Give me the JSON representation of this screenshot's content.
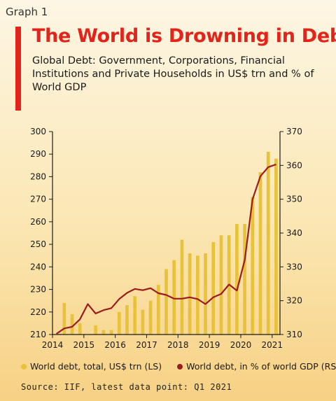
{
  "header": {
    "graph_label": "Graph 1",
    "title": "The World is Drowning in Debt",
    "subtitle": "Global Debt: Government, Corporations, Financial Institutions and Private Households in US$ trn and % of World GDP"
  },
  "legend": {
    "bars_label": "World debt, total, US$ trn (LS)",
    "line_label": "World debt, in % of world GDP (RS)"
  },
  "source": "Source: IIF, latest data point: Q1 2021",
  "colors": {
    "title": "#e3241b",
    "bars": "#e8c23a",
    "line": "#9b1b1f",
    "axis": "#1a1a1a"
  },
  "chart_data": {
    "type": "bar+line",
    "x_ticks": [
      "2014",
      "2015",
      "2016",
      "2017",
      "2018",
      "2019",
      "2020",
      "2021"
    ],
    "y_left_ticks": [
      210,
      220,
      230,
      240,
      250,
      260,
      270,
      280,
      290,
      300
    ],
    "y_right_ticks": [
      310,
      320,
      330,
      340,
      350,
      360,
      370
    ],
    "ylim_left": [
      210,
      300
    ],
    "ylim_right": [
      310,
      370
    ],
    "x": [
      "2014 Q1",
      "2014 Q2",
      "2014 Q3",
      "2014 Q4",
      "2015 Q1",
      "2015 Q2",
      "2015 Q3",
      "2015 Q4",
      "2016 Q1",
      "2016 Q2",
      "2016 Q3",
      "2016 Q4",
      "2017 Q1",
      "2017 Q2",
      "2017 Q3",
      "2017 Q4",
      "2018 Q1",
      "2018 Q2",
      "2018 Q3",
      "2018 Q4",
      "2019 Q1",
      "2019 Q2",
      "2019 Q3",
      "2019 Q4",
      "2020 Q1",
      "2020 Q2",
      "2020 Q3",
      "2020 Q4",
      "2021 Q1"
    ],
    "series": [
      {
        "name": "World debt, total, US$ trn (LS)",
        "type": "bar",
        "axis": "left",
        "values": [
          210,
          224,
          219,
          215,
          210,
          214,
          212,
          212,
          220,
          223,
          227,
          221,
          225,
          232,
          239,
          243,
          252,
          246,
          245,
          246,
          251,
          254,
          254,
          259,
          259,
          271,
          282,
          291,
          288
        ]
      },
      {
        "name": "World debt, in % of world GDP (RS)",
        "type": "line",
        "axis": "right",
        "values": [
          310.2,
          311.8,
          312.3,
          314.5,
          319.0,
          316.2,
          317.2,
          317.8,
          320.5,
          322.3,
          323.5,
          323.1,
          323.7,
          322.2,
          321.7,
          320.6,
          320.6,
          321.0,
          320.5,
          319.0,
          321.0,
          322.0,
          324.8,
          323.0,
          332.0,
          350.0,
          356.8,
          359.5,
          360.3
        ]
      }
    ]
  }
}
